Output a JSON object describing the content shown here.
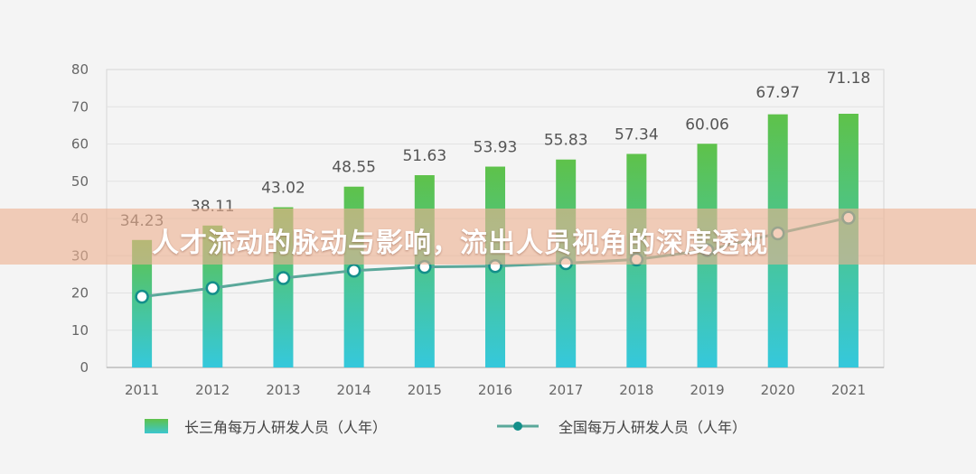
{
  "overlay_title": "人才流动的脉动与影响，流出人员视角的深度透视",
  "chart_data": {
    "type": "bar",
    "categories": [
      "2011",
      "2012",
      "2013",
      "2014",
      "2015",
      "2016",
      "2017",
      "2018",
      "2019",
      "2020",
      "2021"
    ],
    "ylim": [
      0,
      80
    ],
    "yticks": [
      0,
      10,
      20,
      30,
      40,
      50,
      60,
      70,
      80
    ],
    "grid": true,
    "legend_position": "bottom",
    "series": [
      {
        "name": "长三角每万人研发人员（人年）",
        "kind": "bar",
        "values": [
          34.23,
          38.11,
          43.02,
          48.55,
          51.63,
          53.93,
          55.83,
          57.34,
          60.06,
          67.97,
          71.18
        ],
        "color_top": "#5ec24a",
        "color_bottom": "#35c8dc"
      },
      {
        "name": "全国每万人研发人员（人年）",
        "kind": "line",
        "values": [
          19.0,
          21.3,
          24.0,
          26.0,
          27.0,
          27.2,
          28.0,
          29.0,
          31.5,
          36.0,
          40.2
        ],
        "color": "#5aa89a"
      }
    ]
  }
}
